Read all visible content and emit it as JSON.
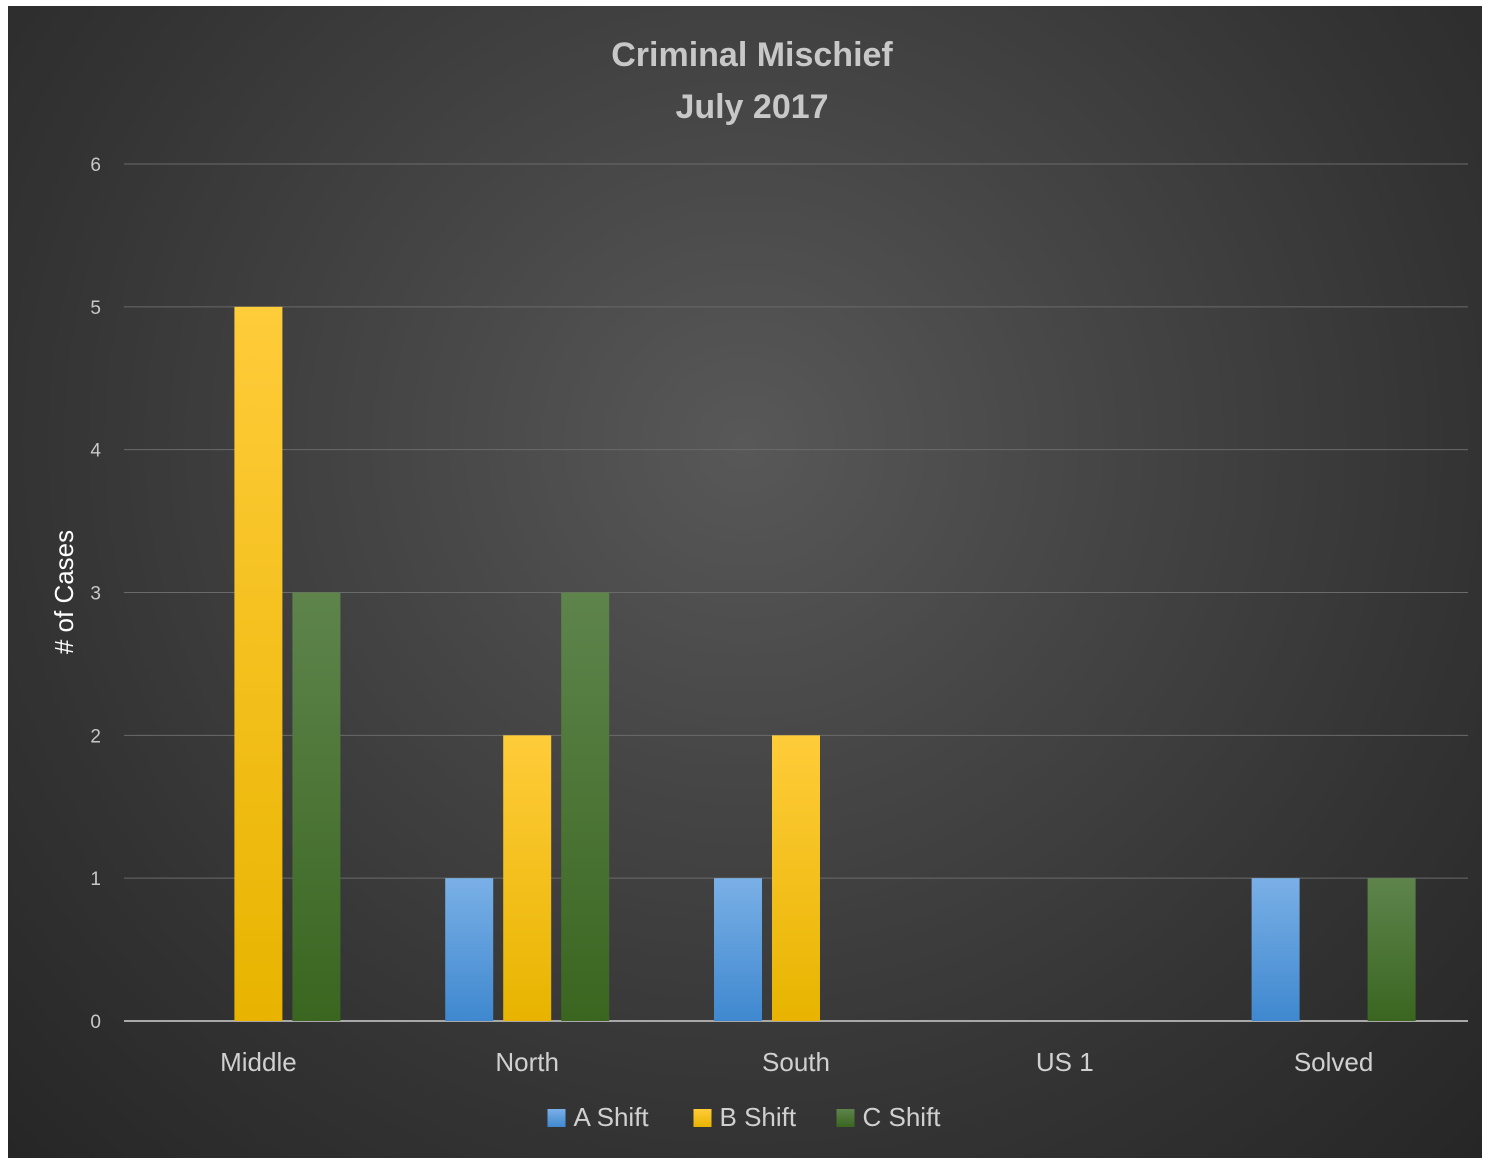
{
  "chart_data": {
    "type": "bar",
    "title": "Criminal Mischief",
    "subtitle": "July 2017",
    "xlabel": "",
    "ylabel": "# of Cases",
    "ylim": [
      0,
      6
    ],
    "yticks": [
      0,
      1,
      2,
      3,
      4,
      5,
      6
    ],
    "grid": true,
    "legend_position": "bottom",
    "categories": [
      "Middle",
      "North",
      "South",
      "US 1",
      "Solved"
    ],
    "series": [
      {
        "name": "A Shift",
        "values": [
          0,
          1,
          1,
          0,
          1
        ],
        "color": "#5b9bd5"
      },
      {
        "name": "B Shift",
        "values": [
          5,
          2,
          2,
          0,
          0
        ],
        "color": "#ffc000"
      },
      {
        "name": "C Shift",
        "values": [
          3,
          3,
          0,
          0,
          1
        ],
        "color": "#4e7a32"
      }
    ]
  }
}
